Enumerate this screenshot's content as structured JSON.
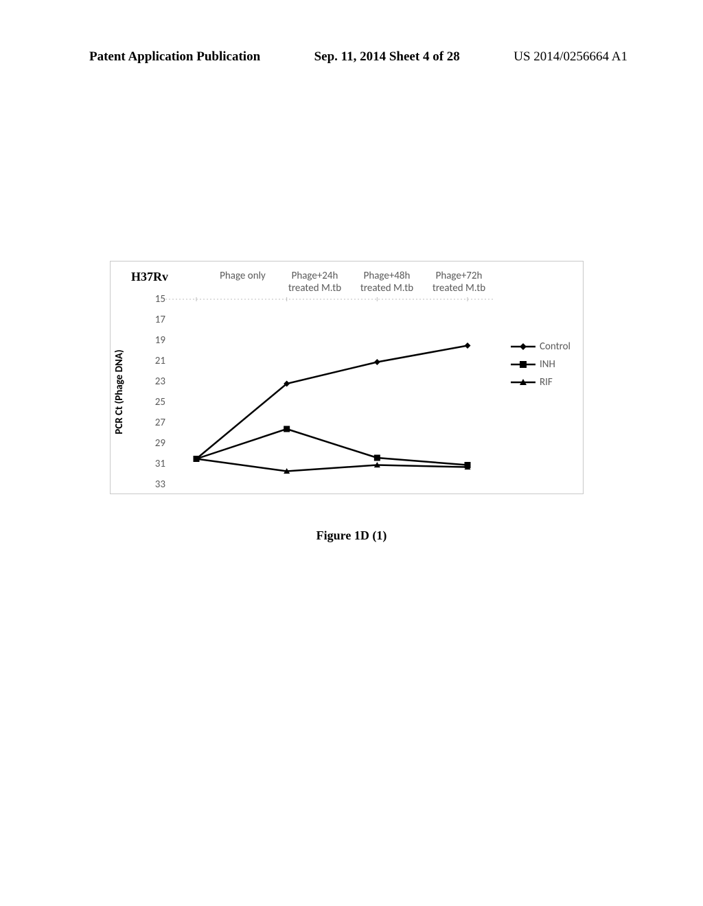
{
  "header": {
    "left": "Patent Application Publication",
    "center": "Sep. 11, 2014  Sheet 4 of 28",
    "right": "US 2014/0256664 A1"
  },
  "chart": {
    "type": "line",
    "title": "H37Rv",
    "y_label": "PCR Ct (Phage DNA)",
    "x_categories": [
      {
        "line1": "",
        "line2": "Phage only"
      },
      {
        "line1": "Phage+24h",
        "line2": "treated M.tb"
      },
      {
        "line1": "Phage+48h",
        "line2": "treated M.tb"
      },
      {
        "line1": "Phage+72h",
        "line2": "treated M.tb"
      }
    ],
    "y_ticks": [
      15,
      17,
      19,
      21,
      23,
      25,
      27,
      29,
      31,
      33
    ],
    "ylim_top": 15,
    "ylim_bottom": 33,
    "series": [
      {
        "name": "Control",
        "marker": "diamond",
        "color": "#000000",
        "values": [
          30.5,
          23.2,
          21.1,
          19.5
        ]
      },
      {
        "name": "INH",
        "marker": "square",
        "color": "#000000",
        "values": [
          30.5,
          27.6,
          30.4,
          31.1
        ]
      },
      {
        "name": "RIF",
        "marker": "triangle",
        "color": "#000000",
        "values": [
          30.5,
          31.7,
          31.1,
          31.3
        ]
      }
    ],
    "background_color": "#ffffff",
    "line_width": 2.5,
    "marker_size": 9
  },
  "caption": "Figure 1D (1)"
}
